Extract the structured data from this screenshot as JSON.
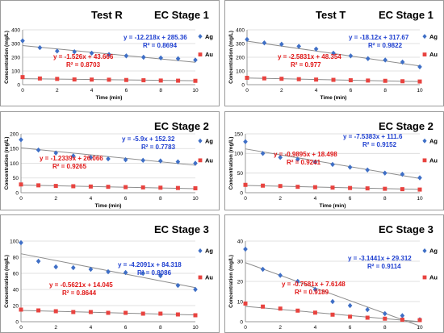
{
  "colors": {
    "ag": "#3f6fc6",
    "au": "#e8433f",
    "ag_eq": "#1f40d0",
    "au_eq": "#e01515",
    "trend": "#8c8c8c",
    "grid": "#d9d9d9"
  },
  "panels": [
    {
      "title_left": "Test R",
      "title_right": "EC Stage 1",
      "ylabel": "Concentration (mg/L)",
      "xlabel": "Time (min)",
      "ylim": [
        0,
        400
      ],
      "yticks": [
        "0",
        "100",
        "200",
        "300",
        "400"
      ],
      "xlim": [
        0,
        10
      ],
      "xticks": [
        "0",
        "2",
        "4",
        "6",
        "8",
        "10"
      ],
      "legend": [
        "Ag",
        "Au"
      ],
      "eq_ag": "y = -12.218x + 285.36",
      "r2_ag": "R² = 0.8694",
      "eq_au": "y = -1.526x + 43.666",
      "r2_au": "R² = 0.8703"
    },
    {
      "title_left": "Test T",
      "title_right": "EC Stage 1",
      "ylabel": "Concentration (mg/L)",
      "xlabel": "Time (min)",
      "ylim": [
        0,
        400
      ],
      "yticks": [
        "0",
        "100",
        "200",
        "300",
        "400"
      ],
      "xlim": [
        0,
        10
      ],
      "xticks": [
        "0",
        "2",
        "4",
        "6",
        "8",
        "10"
      ],
      "legend": [
        "Ag",
        "Au"
      ],
      "eq_ag": "y = -18.12x + 317.67",
      "r2_ag": "R² = 0.9822",
      "eq_au": "y = -2.5831x + 48.354",
      "r2_au": "R² = 0.977"
    },
    {
      "title_left": "",
      "title_right": "EC Stage 2",
      "ylabel": "Concentration (mg/L)",
      "xlabel": "Time (min)",
      "ylim": [
        0,
        200
      ],
      "yticks": [
        "0",
        "50",
        "100",
        "150",
        "200"
      ],
      "xlim": [
        0,
        10
      ],
      "xticks": [
        "0",
        "2",
        "4",
        "6",
        "8",
        "10"
      ],
      "legend": [
        "Ag",
        "Au"
      ],
      "eq_ag": "y = -5.9x + 152.32",
      "r2_ag": "R² = 0.7783",
      "eq_au": "y = -1.2339x + 26.066",
      "r2_au": "R² = 0.9265"
    },
    {
      "title_left": "",
      "title_right": "EC Stage 2",
      "ylabel": "Concentration (mg/L)",
      "xlabel": "Time (min)",
      "ylim": [
        0,
        150
      ],
      "yticks": [
        "0",
        "50",
        "100",
        "150"
      ],
      "xlim": [
        0,
        10
      ],
      "xticks": [
        "0",
        "2",
        "4",
        "6",
        "8",
        "10"
      ],
      "legend": [
        "Ag",
        "Au"
      ],
      "eq_ag": "y = -7.5383x + 111.6",
      "r2_ag": "R² = 0.9152",
      "eq_au": "y = -0.9895x + 18.498",
      "r2_au": "R² = 0.9241"
    },
    {
      "title_left": "",
      "title_right": "EC Stage 3",
      "ylabel": "Concentration (mg/L)",
      "xlabel": "Time (min)",
      "ylim": [
        0,
        100
      ],
      "yticks": [
        "0",
        "20",
        "40",
        "60",
        "80",
        "100"
      ],
      "xlim": [
        0,
        10
      ],
      "xticks": [
        "0",
        "2",
        "4",
        "6",
        "8",
        "10"
      ],
      "legend": [
        "Ag",
        "Au"
      ],
      "eq_ag": "y = -4.2091x + 84.318",
      "r2_ag": "R² = 0.8086",
      "eq_au": "y = -0.5621x + 14.045",
      "r2_au": "R² = 0.8644"
    },
    {
      "title_left": "",
      "title_right": "EC Stage 3",
      "ylabel": "Concentration (mg/L)",
      "xlabel": "Time (min)",
      "ylim": [
        0,
        40
      ],
      "yticks": [
        "0",
        "10",
        "20",
        "30",
        "40"
      ],
      "xlim": [
        0,
        10
      ],
      "xticks": [
        "0",
        "2",
        "4",
        "6",
        "8",
        "10"
      ],
      "legend": [
        "Ag",
        "Au"
      ],
      "eq_ag": "y = -3.1441x + 29.312",
      "r2_ag": "R² = 0.9114",
      "eq_au": "y = -0.7581x + 7.6148",
      "r2_au": "R² = 0.9189"
    }
  ],
  "chart_data": [
    {
      "type": "scatter",
      "title": "Test R EC Stage 1",
      "xlabel": "Time (min)",
      "ylabel": "Concentration (mg/L)",
      "xlim": [
        0,
        10
      ],
      "ylim": [
        0,
        400
      ],
      "grid": true,
      "legend": "right",
      "series": [
        {
          "name": "Ag",
          "x": [
            0,
            1,
            2,
            3,
            4,
            5,
            6,
            7,
            8,
            9,
            10
          ],
          "y": [
            320,
            270,
            245,
            240,
            230,
            220,
            210,
            200,
            195,
            190,
            180
          ],
          "trend": {
            "slope": -12.218,
            "intercept": 285.36
          }
        },
        {
          "name": "Au",
          "x": [
            0,
            1,
            2,
            3,
            4,
            5,
            6,
            7,
            8,
            9,
            10
          ],
          "y": [
            55,
            45,
            42,
            38,
            37,
            36,
            34,
            32,
            30,
            29,
            28
          ],
          "trend": {
            "slope": -1.526,
            "intercept": 43.666
          }
        }
      ]
    },
    {
      "type": "scatter",
      "title": "Test T EC Stage 1",
      "xlabel": "Time (min)",
      "ylabel": "Concentration (mg/L)",
      "xlim": [
        0,
        10
      ],
      "ylim": [
        0,
        400
      ],
      "grid": true,
      "legend": "right",
      "series": [
        {
          "name": "Ag",
          "x": [
            0,
            1,
            2,
            3,
            4,
            5,
            6,
            7,
            8,
            9,
            10
          ],
          "y": [
            330,
            305,
            295,
            280,
            260,
            230,
            210,
            190,
            180,
            165,
            130
          ],
          "trend": {
            "slope": -18.12,
            "intercept": 317.67
          }
        },
        {
          "name": "Au",
          "x": [
            0,
            1,
            2,
            3,
            4,
            5,
            6,
            7,
            8,
            9,
            10
          ],
          "y": [
            50,
            46,
            43,
            40,
            37,
            35,
            32,
            30,
            28,
            25,
            23
          ],
          "trend": {
            "slope": -2.5831,
            "intercept": 48.354
          }
        }
      ]
    },
    {
      "type": "scatter",
      "title": "EC Stage 2",
      "xlabel": "Time (min)",
      "ylabel": "Concentration (mg/L)",
      "xlim": [
        0,
        10
      ],
      "ylim": [
        0,
        200
      ],
      "grid": true,
      "legend": "right",
      "series": [
        {
          "name": "Ag",
          "x": [
            0,
            1,
            2,
            3,
            4,
            5,
            6,
            7,
            8,
            9,
            10
          ],
          "y": [
            180,
            145,
            135,
            125,
            120,
            115,
            112,
            110,
            108,
            105,
            100
          ],
          "trend": {
            "slope": -5.9,
            "intercept": 152.32
          }
        },
        {
          "name": "Au",
          "x": [
            0,
            1,
            2,
            3,
            4,
            5,
            6,
            7,
            8,
            9,
            10
          ],
          "y": [
            28,
            25,
            23,
            22,
            21,
            20,
            19,
            18,
            17,
            16,
            15
          ],
          "trend": {
            "slope": -1.2339,
            "intercept": 26.066
          }
        }
      ]
    },
    {
      "type": "scatter",
      "title": "EC Stage 2",
      "xlabel": "Time (min)",
      "ylabel": "Concentration (mg/L)",
      "xlim": [
        0,
        10
      ],
      "ylim": [
        0,
        150
      ],
      "grid": true,
      "legend": "right",
      "series": [
        {
          "name": "Ag",
          "x": [
            0,
            1,
            2,
            3,
            4,
            5,
            6,
            7,
            8,
            9,
            10
          ],
          "y": [
            130,
            100,
            90,
            85,
            78,
            72,
            65,
            58,
            50,
            47,
            38
          ],
          "trend": {
            "slope": -7.5383,
            "intercept": 111.6
          }
        },
        {
          "name": "Au",
          "x": [
            0,
            1,
            2,
            3,
            4,
            5,
            6,
            7,
            8,
            9,
            10
          ],
          "y": [
            20,
            18,
            17,
            15,
            14,
            13,
            12,
            11,
            10,
            9,
            8
          ],
          "trend": {
            "slope": -0.9895,
            "intercept": 18.498
          }
        }
      ]
    },
    {
      "type": "scatter",
      "title": "EC Stage 3",
      "xlabel": "Time (min)",
      "ylabel": "Concentration (mg/L)",
      "xlim": [
        0,
        10
      ],
      "ylim": [
        0,
        100
      ],
      "grid": true,
      "legend": "right",
      "series": [
        {
          "name": "Ag",
          "x": [
            0,
            1,
            2,
            3,
            4,
            5,
            6,
            7,
            8,
            9,
            10
          ],
          "y": [
            98,
            75,
            68,
            67,
            65,
            62,
            61,
            60,
            57,
            45,
            40
          ],
          "trend": {
            "slope": -4.2091,
            "intercept": 84.318
          }
        },
        {
          "name": "Au",
          "x": [
            0,
            1,
            2,
            3,
            4,
            5,
            6,
            7,
            8,
            9,
            10
          ],
          "y": [
            15,
            14,
            13,
            12,
            12,
            11,
            11,
            10,
            10,
            9,
            8
          ],
          "trend": {
            "slope": -0.5621,
            "intercept": 14.045
          }
        }
      ]
    },
    {
      "type": "scatter",
      "title": "EC Stage 3",
      "xlabel": "Time (min)",
      "ylabel": "Concentration (mg/L)",
      "xlim": [
        0,
        10
      ],
      "ylim": [
        0,
        40
      ],
      "grid": true,
      "legend": "right",
      "series": [
        {
          "name": "Ag",
          "x": [
            0,
            1,
            2,
            3,
            4,
            5,
            6,
            7,
            8,
            9,
            10
          ],
          "y": [
            36,
            26,
            23,
            20,
            16,
            10,
            8,
            6,
            4,
            3,
            1
          ],
          "trend": {
            "slope": -3.1441,
            "intercept": 29.312
          }
        },
        {
          "name": "Au",
          "x": [
            0,
            1,
            2,
            3,
            4,
            5,
            6,
            7,
            8,
            9,
            10
          ],
          "y": [
            9,
            7.5,
            6.5,
            5.5,
            4.5,
            3.5,
            2.5,
            2,
            1.5,
            1,
            0.8
          ],
          "trend": {
            "slope": -0.7581,
            "intercept": 7.6148
          }
        }
      ]
    }
  ]
}
